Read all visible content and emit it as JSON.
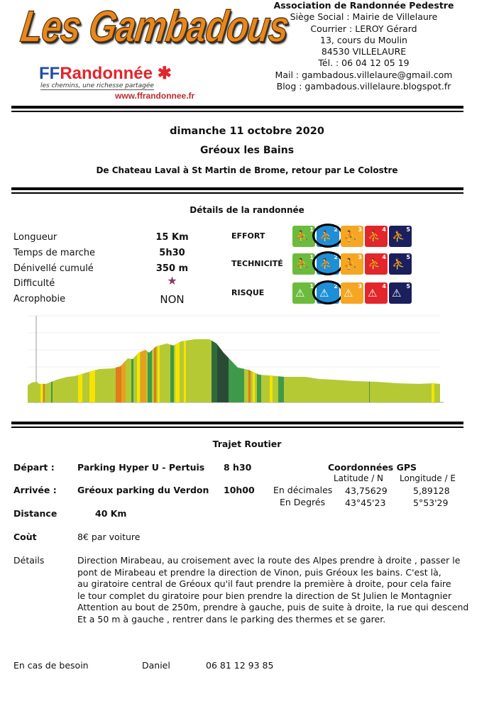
{
  "header": {
    "logo_text": "Les Gambadous",
    "ffr_logo": {
      "brand_ff": "FF",
      "brand_r": "Randonnée",
      "tagline": "les chemins, une richesse partagée",
      "url": "www.ffrandonnee.fr"
    },
    "address": [
      "Association de Randonnée Pedestre",
      "Siège Social :  Mairie de Villelaure",
      "Courrier : LEROY  Gérard",
      "13, cours du Moulin",
      "84530  VILLELAURE",
      "Tél. : 06 04 12 05 19",
      "Mail :  gambadous.villelaure@gmail.com",
      "Blog :  gambadous.villelaure.blogspot.fr"
    ]
  },
  "event": {
    "date": "dimanche 11 octobre 2020",
    "place": "Gréoux les Bains",
    "route": "De Chateau Laval à St Martin de Brome, retour par Le Colostre"
  },
  "details": {
    "title": "Détails de la randonnée",
    "rows": [
      {
        "label": "Longueur",
        "value": "15 Km"
      },
      {
        "label": "Temps de marche",
        "value": "5h30"
      },
      {
        "label": "Dénivellé cumulé",
        "value": "350 m"
      },
      {
        "label": "Difficulté",
        "value": "★"
      },
      {
        "label": "Acrophobie",
        "value": "NON"
      }
    ],
    "difficulty_stars": 1,
    "ratings": [
      {
        "label": "EFFORT",
        "selected": 2,
        "icon": "hiker-icon"
      },
      {
        "label": "TECHNICITÉ",
        "selected": 2,
        "icon": "hiker-terrain-icon"
      },
      {
        "label": "RISQUE",
        "selected": 2,
        "icon": "warning-icon"
      }
    ],
    "level_colors": [
      "#6cbb3c",
      "#1e8fd6",
      "#f5a623",
      "#e2262b",
      "#1b1f5c"
    ],
    "level_numbers": [
      "1",
      "2",
      "3",
      "4",
      "5"
    ]
  },
  "trajet": {
    "title": "Trajet Routier",
    "depart": {
      "label": "Départ :",
      "place": "Parking Hyper U -  Pertuis",
      "time": "8 h30"
    },
    "arrivee": {
      "label": "Arrivée :",
      "place": "Gréoux parking du Verdon",
      "time": "10h00"
    },
    "distance": {
      "label": "Distance",
      "value": "40 Km"
    },
    "cout": {
      "label": "Coùt",
      "value": "8€ par voiture"
    },
    "gps": {
      "title": "Coordonnées GPS",
      "lat_header": "Latitude / N",
      "lon_header": "Longitude / E",
      "rows": [
        {
          "label": "En décimales",
          "lat": "43,75629",
          "lon": "5,89128"
        },
        {
          "label": "En Degrés",
          "lat": "43°45'23",
          "lon": "5°53'29"
        }
      ]
    },
    "details_label": "Détails",
    "details_lines": [
      "Direction Mirabeau, au croisement avec la route des Alpes prendre à droite , passer le",
      "pont de Mirabeau et prendre la direction de Vinon, puis  Gréoux les bains. C'est là,",
      "au giratoire central de Gréoux qu'il faut prendre la première à droite, pour cela faire",
      "le tour complet du giratoire pour bien prendre la direction de St Julien le Montagnier",
      "Attention au bout de 250m, prendre à gauche, puis de suite à droite,  la rue  qui descend",
      "Et a 50 m à gauche , rentrer dans le parking des thermes et se garer."
    ],
    "contact": {
      "label": "En cas de besoin",
      "name": "Daniel",
      "phone": "06 81 12 93 85"
    }
  }
}
